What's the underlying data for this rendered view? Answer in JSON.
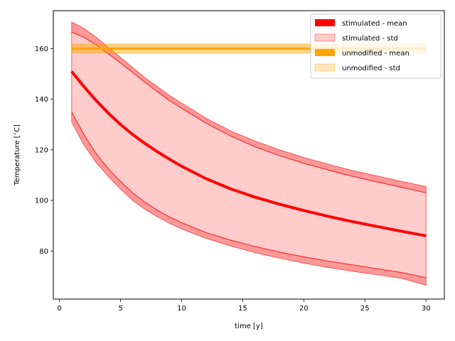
{
  "chart_data": {
    "type": "area",
    "xlabel": "time [y]",
    "ylabel": "Temperature [$^\\circ$C]",
    "xlim": [
      -0.5,
      31.5
    ],
    "ylim": [
      61,
      175
    ],
    "xticks": [
      0,
      5,
      10,
      15,
      20,
      25,
      30
    ],
    "yticks": [
      80,
      100,
      120,
      140,
      160
    ],
    "legend_position": "top-right",
    "series": [
      {
        "name": "stimulated - mean",
        "color": "#ff0000",
        "x": [
          1,
          2,
          3,
          4,
          5,
          6,
          7,
          8,
          9,
          10,
          12,
          14,
          16,
          18,
          20,
          22,
          24,
          26,
          28,
          30
        ],
        "mean": [
          151,
          145,
          139.5,
          134.5,
          130,
          126,
          122.5,
          119.3,
          116.3,
          113.5,
          108.6,
          104.6,
          101.3,
          98.5,
          96,
          93.7,
          91.6,
          89.7,
          87.8,
          86
        ],
        "mean_band": [
          1.2,
          1.2,
          1.2,
          1.2,
          1.2,
          1.2,
          1.2,
          1.2,
          1.2,
          1.2,
          1.2,
          1.2,
          1.2,
          1.2,
          1.2,
          1.2,
          1.2,
          1.2,
          1.2,
          1.2
        ]
      },
      {
        "name": "stimulated - std",
        "color": "#ff0000",
        "x": [
          1,
          2,
          3,
          4,
          5,
          6,
          7,
          8,
          9,
          10,
          12,
          14,
          16,
          18,
          20,
          22,
          24,
          26,
          28,
          30
        ],
        "upper_outer": [
          170.5,
          168,
          164.5,
          160.5,
          156.5,
          152.5,
          148.5,
          145,
          141.5,
          138.5,
          132.5,
          127.5,
          123.5,
          120,
          117,
          114.3,
          111.8,
          109.7,
          107.5,
          105.5
        ],
        "upper_inner": [
          166.5,
          164.5,
          161.5,
          158,
          154.3,
          150.5,
          146.7,
          143,
          139.5,
          136.4,
          130.5,
          125.5,
          121.2,
          117.7,
          114.7,
          112,
          109.5,
          107.3,
          105.2,
          103
        ],
        "lower_inner": [
          135,
          126,
          118.5,
          112.5,
          107.5,
          103,
          99.3,
          96.2,
          93.5,
          91.2,
          87.3,
          84.3,
          81.8,
          79.6,
          77.7,
          76,
          74.5,
          73,
          71.5,
          69.5
        ],
        "lower_outer": [
          131,
          122,
          115,
          109.5,
          104.5,
          100,
          96.5,
          93.6,
          91,
          88.7,
          85,
          82,
          79.4,
          77.2,
          75.2,
          73.5,
          72,
          70.6,
          69.2,
          66.5
        ]
      },
      {
        "name": "unmodified - mean",
        "color": "#ffa500",
        "x": [
          1,
          30
        ],
        "mean": [
          160,
          160
        ]
      },
      {
        "name": "unmodified - std",
        "color": "#ffa500",
        "x": [
          1,
          30
        ],
        "upper": [
          161.8,
          161.8
        ],
        "lower": [
          158.3,
          158.3
        ]
      }
    ]
  }
}
